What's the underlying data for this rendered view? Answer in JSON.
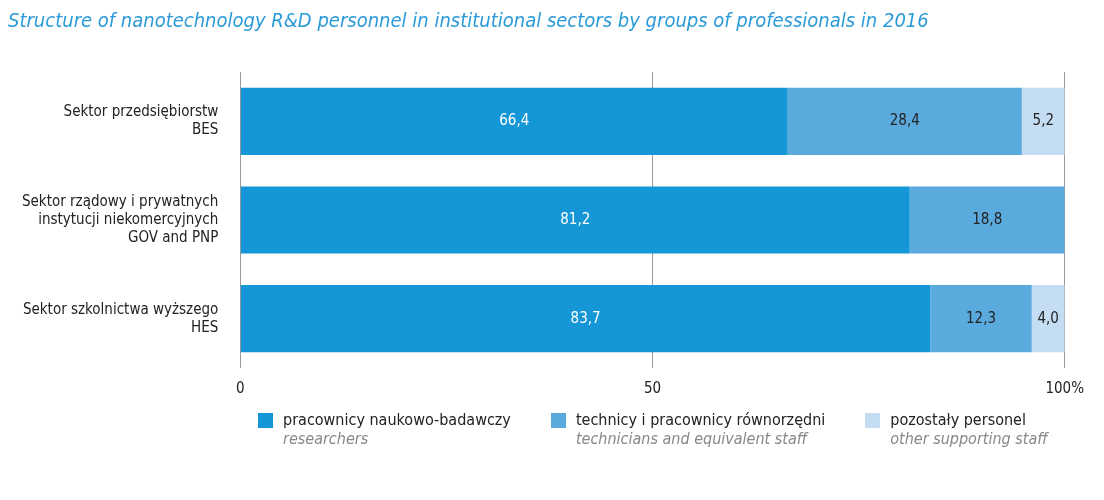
{
  "chart_data": {
    "type": "bar",
    "orientation": "horizontal",
    "stacked": true,
    "title": "Structure of nanotechnology R&D personnel in institutional sectors by groups of professionals in 2016",
    "categories": [
      "Sektor przedsiębiorstw\nBES",
      "Sektor rządowy i prywatnych\ninstytucji niekomercyjnych\nGOV and PNP",
      "Sektor szkolnictwa wyższego\nHES"
    ],
    "series": [
      {
        "name": "pracownicy naukowo-badawczy\nresearchers",
        "color": "#1596d6",
        "values": [
          66.4,
          81.2,
          83.7
        ],
        "value_labels": [
          "66,4",
          "81,2",
          "83,7"
        ]
      },
      {
        "name": "technicy i pracownicy równorzędni\ntechnicians and equivalent staff",
        "color": "#5aaade",
        "values": [
          28.4,
          18.8,
          12.3
        ],
        "value_labels": [
          "28,4",
          "18,8",
          "12,3"
        ]
      },
      {
        "name": "pozostały personel\nother supporting staff",
        "color": "#c4ddf2",
        "values": [
          5.2,
          null,
          4.0
        ],
        "value_labels": [
          "5,2",
          null,
          "4,0"
        ]
      }
    ],
    "xlim": [
      0,
      100
    ],
    "xticks": [
      0,
      50,
      {
        "value": 100,
        "label": "100%"
      }
    ],
    "grid": "x",
    "legend": "bottom"
  }
}
